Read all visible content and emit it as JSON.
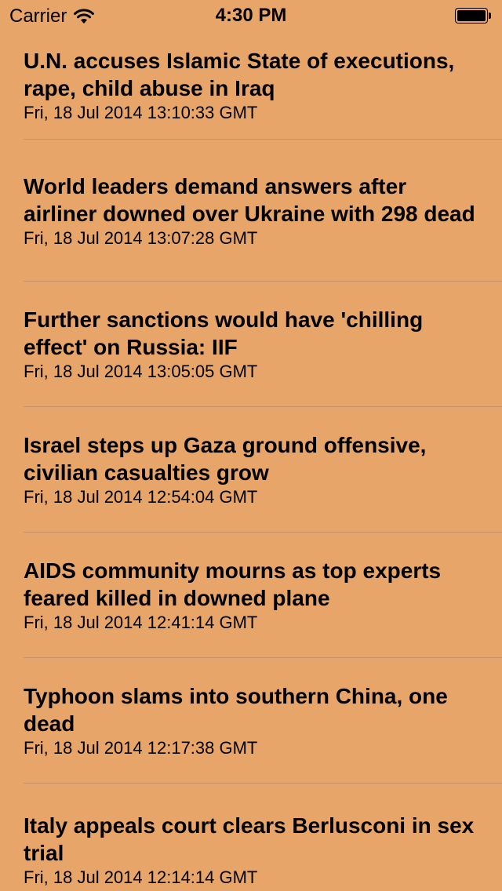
{
  "status_bar": {
    "carrier": "Carrier",
    "time": "4:30 PM",
    "battery_level": 1.0
  },
  "news": {
    "items": [
      {
        "title": "U.N. accuses Islamic State of executions, rape, child abuse in Iraq",
        "date": "Fri, 18 Jul 2014 13:10:33 GMT"
      },
      {
        "title": "World leaders demand answers after airliner downed over Ukraine with 298 dead",
        "date": "Fri, 18 Jul 2014 13:07:28 GMT"
      },
      {
        "title": "Further sanctions would have 'chilling effect' on Russia: IIF",
        "date": "Fri, 18 Jul 2014 13:05:05 GMT"
      },
      {
        "title": "Israel steps up Gaza ground offensive, civilian casualties grow",
        "date": "Fri, 18 Jul 2014 12:54:04 GMT"
      },
      {
        "title": "AIDS community mourns as top experts feared killed in downed plane",
        "date": "Fri, 18 Jul 2014 12:41:14 GMT"
      },
      {
        "title": "Typhoon slams into southern China, one dead",
        "date": "Fri, 18 Jul 2014 12:17:38 GMT"
      },
      {
        "title": "Italy appeals court clears Berlusconi in sex trial",
        "date": "Fri, 18 Jul 2014 12:14:14 GMT"
      }
    ]
  },
  "colors": {
    "background": "#E8A56A",
    "separator": "#C9916A",
    "text": "#000000"
  }
}
